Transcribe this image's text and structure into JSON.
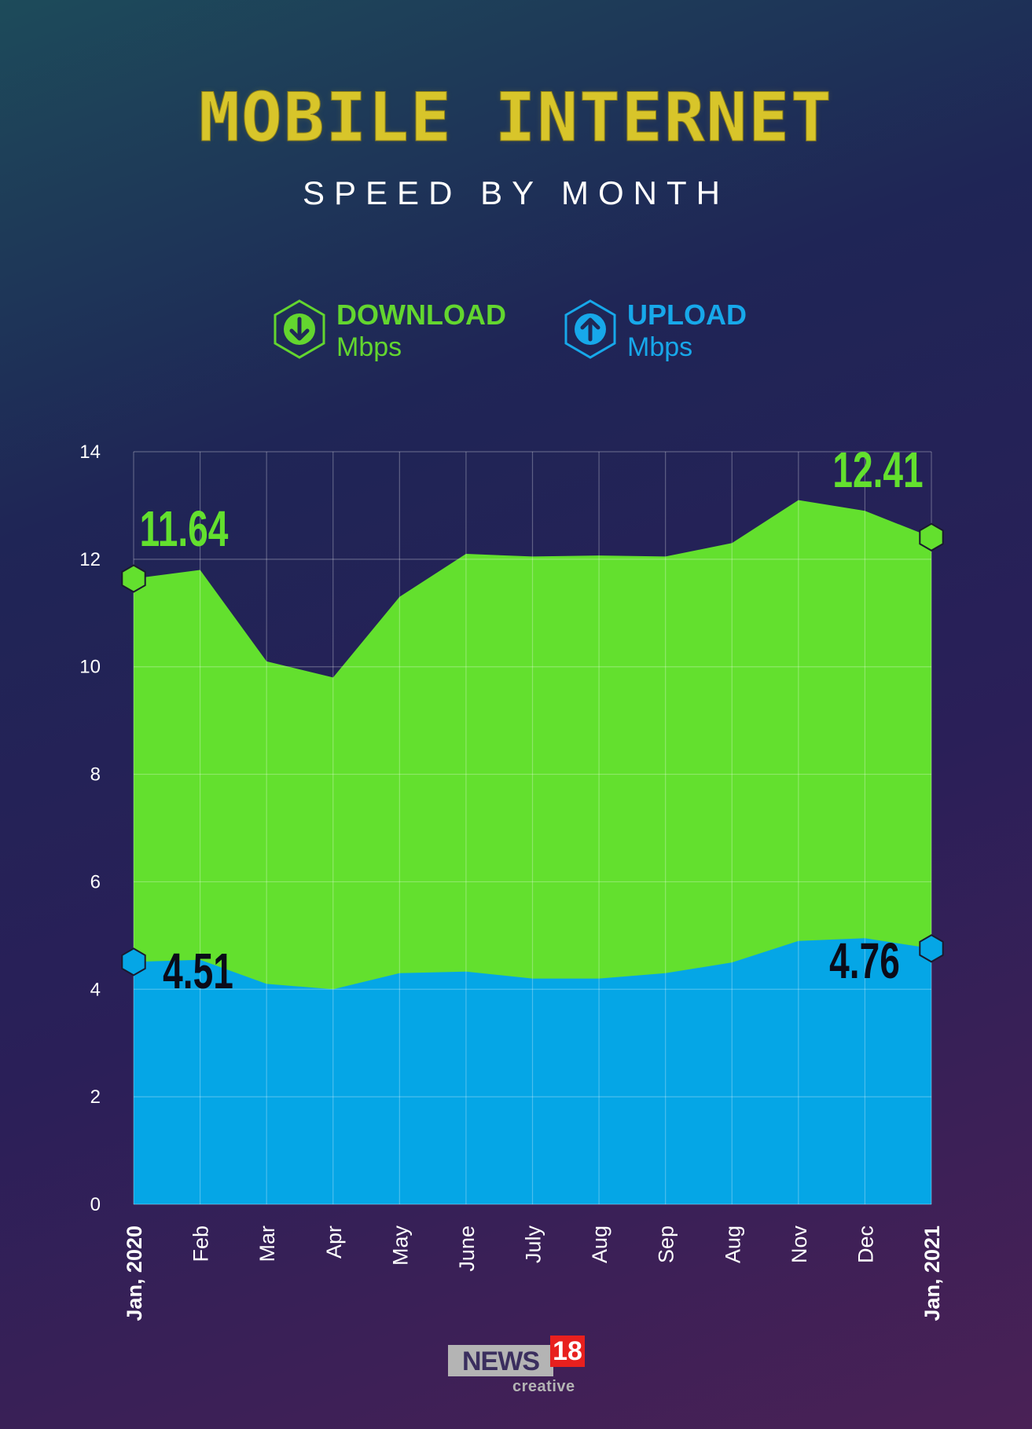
{
  "header": {
    "title": "MOBILE INTERNET",
    "subtitle": "SPEED BY MONTH"
  },
  "legend": {
    "download": {
      "label": "DOWNLOAD",
      "unit": "Mbps",
      "color": "#63d62f",
      "icon": "arrow-down-icon"
    },
    "upload": {
      "label": "UPLOAD",
      "unit": "Mbps",
      "color": "#17a8ea",
      "icon": "arrow-up-icon"
    }
  },
  "chart_data": {
    "type": "area",
    "title": "MOBILE INTERNET",
    "subtitle": "SPEED BY MONTH",
    "xlabel": "",
    "ylabel": "",
    "ylim": [
      0,
      14
    ],
    "yticks": [
      0,
      2,
      4,
      6,
      8,
      10,
      12,
      14
    ],
    "grid": true,
    "categories": [
      "Jan, 2020",
      "Feb",
      "Mar",
      "Apr",
      "May",
      "June",
      "July",
      "Aug",
      "Sep",
      "Aug",
      "Nov",
      "Dec",
      "Jan, 2021"
    ],
    "series": [
      {
        "name": "DOWNLOAD",
        "color": "#63e02e",
        "values": [
          11.64,
          11.8,
          10.1,
          9.8,
          11.3,
          12.1,
          12.05,
          12.07,
          12.05,
          12.3,
          13.1,
          12.9,
          12.41
        ]
      },
      {
        "name": "UPLOAD",
        "color": "#05a6e6",
        "values": [
          4.51,
          4.55,
          4.1,
          4.0,
          4.3,
          4.33,
          4.2,
          4.2,
          4.3,
          4.5,
          4.9,
          4.95,
          4.76
        ]
      }
    ],
    "annotations": [
      {
        "series": "DOWNLOAD",
        "at": "Jan, 2020",
        "text": "11.64"
      },
      {
        "series": "DOWNLOAD",
        "at": "Jan, 2021",
        "text": "12.41"
      },
      {
        "series": "UPLOAD",
        "at": "Jan, 2020",
        "text": "4.51"
      },
      {
        "series": "UPLOAD",
        "at": "Jan, 2021",
        "text": "4.76"
      }
    ]
  },
  "branding": {
    "logo_word": "NEWS",
    "logo_number": "18",
    "logo_tagline": "creative"
  }
}
